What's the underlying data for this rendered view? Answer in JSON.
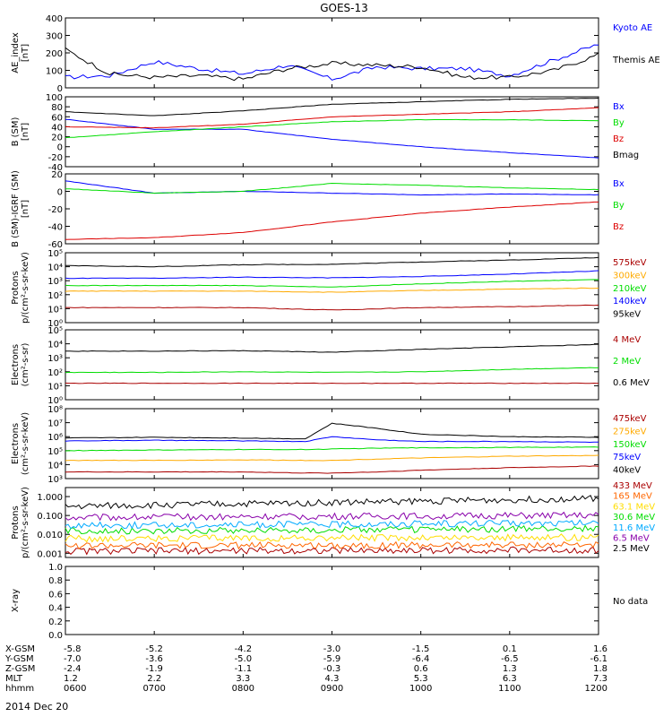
{
  "title": "GOES-13",
  "date_label": "2014 Dec 20",
  "ephemeris": {
    "labels": [
      "X-GSM",
      "Y-GSM",
      "Z-GSM",
      "MLT",
      "hhmm"
    ],
    "columns": [
      {
        "x": "-5.8",
        "y": "-7.0",
        "z": "-2.4",
        "mlt": "1.2",
        "hhmm": "0600"
      },
      {
        "x": "-5.2",
        "y": "-3.6",
        "z": "-1.9",
        "mlt": "2.2",
        "hhmm": "0700"
      },
      {
        "x": "-4.2",
        "y": "-5.0",
        "z": "-1.1",
        "mlt": "3.3",
        "hhmm": "0800"
      },
      {
        "x": "-3.0",
        "y": "-5.9",
        "z": "-0.3",
        "mlt": "4.3",
        "hhmm": "0900"
      },
      {
        "x": "-1.5",
        "y": "-6.4",
        "z": "0.6",
        "mlt": "5.3",
        "hhmm": "1000"
      },
      {
        "x": "0.1",
        "y": "-6.5",
        "z": "1.3",
        "mlt": "6.3",
        "hhmm": "1100"
      },
      {
        "x": "1.6",
        "y": "-6.1",
        "z": "1.8",
        "mlt": "7.3",
        "hhmm": "1200"
      }
    ]
  },
  "chart_data": [
    {
      "type": "line",
      "ylabel": "AE_index\n[nT]",
      "ylim": [
        0,
        400
      ],
      "log": false,
      "yticks": [
        "400",
        "300",
        "200",
        "100",
        "0"
      ],
      "ytick_vals": [
        400,
        300,
        200,
        100,
        0
      ],
      "x": [
        0,
        0.5,
        1,
        1.5,
        2,
        2.5,
        3,
        3.5,
        4,
        4.5,
        5,
        5.5,
        6
      ],
      "series": [
        {
          "name": "Kyoto AE",
          "color": "#0000ff",
          "values": [
            60,
            70,
            150,
            110,
            80,
            130,
            50,
            120,
            110,
            110,
            70,
            160,
            250
          ]
        },
        {
          "name": "Themis AE",
          "color": "#000000",
          "values": [
            220,
            80,
            60,
            70,
            50,
            110,
            140,
            130,
            120,
            60,
            60,
            100,
            190
          ]
        }
      ]
    },
    {
      "type": "line",
      "ylabel": "B (SM)\n[nT]",
      "ylim": [
        -40,
        100
      ],
      "log": false,
      "yticks": [
        "100",
        "80",
        "60",
        "40",
        "20",
        "0",
        "-20",
        "-40"
      ],
      "ytick_vals": [
        100,
        80,
        60,
        40,
        20,
        0,
        -20,
        -40
      ],
      "x": [
        0,
        1,
        2,
        3,
        4,
        5,
        6
      ],
      "series": [
        {
          "name": "Bx",
          "color": "#0000ff",
          "values": [
            55,
            35,
            35,
            15,
            0,
            -12,
            -22
          ]
        },
        {
          "name": "By",
          "color": "#00dd00",
          "values": [
            18,
            30,
            40,
            50,
            54,
            54,
            52
          ]
        },
        {
          "name": "Bz",
          "color": "#dd0000",
          "values": [
            40,
            38,
            45,
            60,
            65,
            70,
            78
          ]
        },
        {
          "name": "Bmag",
          "color": "#000000",
          "values": [
            70,
            62,
            72,
            85,
            90,
            95,
            97
          ]
        }
      ]
    },
    {
      "type": "line",
      "ylabel": "B (SM)-IGRF (SM)\n[nT]",
      "ylim": [
        -60,
        20
      ],
      "log": false,
      "yticks": [
        "20",
        "0",
        "-20",
        "-40",
        "-60"
      ],
      "ytick_vals": [
        20,
        0,
        -20,
        -40,
        -60
      ],
      "x": [
        0,
        1,
        2,
        3,
        4,
        5,
        6
      ],
      "series": [
        {
          "name": "Bx",
          "color": "#0000ff",
          "values": [
            12,
            -2,
            0,
            -2,
            -4,
            -3,
            -4
          ]
        },
        {
          "name": "By",
          "color": "#00dd00",
          "values": [
            3,
            -2,
            0,
            9,
            7,
            4,
            2
          ]
        },
        {
          "name": "Bz",
          "color": "#dd0000",
          "values": [
            -55,
            -53,
            -47,
            -35,
            -25,
            -18,
            -12
          ]
        }
      ]
    },
    {
      "type": "line",
      "ylabel": "Protons\np/(cm²-s-sr-keV)",
      "ylim": [
        1,
        100000
      ],
      "log": true,
      "yticks": [
        "10⁵",
        "10⁴",
        "10³",
        "10²",
        "10¹",
        "10⁰"
      ],
      "ytick_vals": [
        100000,
        10000,
        1000,
        100,
        10,
        1
      ],
      "x": [
        0,
        1,
        2,
        3,
        4,
        5,
        6
      ],
      "series": [
        {
          "name": "575keV",
          "color": "#aa0000",
          "values": [
            12,
            12,
            12,
            8,
            12,
            14,
            18
          ]
        },
        {
          "name": "300keV",
          "color": "#ffaa00",
          "values": [
            180,
            180,
            180,
            150,
            200,
            250,
            300
          ]
        },
        {
          "name": "210keV",
          "color": "#00dd00",
          "values": [
            450,
            450,
            450,
            350,
            600,
            900,
            1200
          ]
        },
        {
          "name": "140keV",
          "color": "#0000ff",
          "values": [
            1500,
            1500,
            1800,
            1600,
            2000,
            3000,
            5000
          ]
        },
        {
          "name": "95keV",
          "color": "#000000",
          "values": [
            12000,
            10000,
            14000,
            15000,
            22000,
            30000,
            45000
          ]
        }
      ]
    },
    {
      "type": "line",
      "ylabel": "Electrons\n(cm²-s-sr)",
      "ylim": [
        1,
        100000
      ],
      "log": true,
      "yticks": [
        "10⁵",
        "10⁴",
        "10³",
        "10²",
        "10¹",
        "10⁰"
      ],
      "ytick_vals": [
        100000,
        10000,
        1000,
        100,
        10,
        1
      ],
      "x": [
        0,
        1,
        2,
        3,
        4,
        5,
        6
      ],
      "series": [
        {
          "name": "4 MeV",
          "color": "#aa0000",
          "values": [
            15,
            15,
            15,
            15,
            15,
            15,
            15
          ]
        },
        {
          "name": "2 MeV",
          "color": "#00dd00",
          "values": [
            90,
            90,
            100,
            90,
            100,
            150,
            200
          ]
        },
        {
          "name": "0.6 MeV",
          "color": "#000000",
          "values": [
            3000,
            3000,
            3200,
            2500,
            4000,
            6000,
            9000
          ]
        }
      ]
    },
    {
      "type": "line",
      "ylabel": "Electrons\n(cm²-s-sr-keV)",
      "ylim": [
        1000,
        100000000
      ],
      "log": true,
      "yticks": [
        "10⁸",
        "10⁷",
        "10⁶",
        "10⁵",
        "10⁴",
        "10³"
      ],
      "ytick_vals": [
        100000000,
        10000000,
        1000000,
        100000,
        10000,
        1000
      ],
      "x": [
        0,
        1,
        2,
        2.7,
        3,
        3.5,
        4,
        5,
        6
      ],
      "series": [
        {
          "name": "475keV",
          "color": "#aa0000",
          "values": [
            3000,
            3000,
            3000,
            2500,
            2500,
            3000,
            4000,
            6000,
            8000
          ]
        },
        {
          "name": "275keV",
          "color": "#ffaa00",
          "values": [
            20000,
            20000,
            22000,
            20000,
            20000,
            25000,
            30000,
            40000,
            45000
          ]
        },
        {
          "name": "150keV",
          "color": "#00dd00",
          "values": [
            100000,
            110000,
            120000,
            120000,
            130000,
            150000,
            160000,
            170000,
            180000
          ]
        },
        {
          "name": "75keV",
          "color": "#0000ff",
          "values": [
            500000,
            550000,
            500000,
            450000,
            1000000,
            600000,
            450000,
            450000,
            400000
          ]
        },
        {
          "name": "40keV",
          "color": "#000000",
          "values": [
            800000,
            900000,
            800000,
            700000,
            9000000,
            4000000,
            1500000,
            1000000,
            900000
          ]
        }
      ]
    },
    {
      "type": "line",
      "ylabel": "Protons\np/(cm²-s-sr-keV)",
      "ylim": [
        0.0006,
        3
      ],
      "log": true,
      "yticks": [
        "1.000",
        "0.100",
        "0.010",
        "0.001"
      ],
      "ytick_vals": [
        1,
        0.1,
        0.01,
        0.001
      ],
      "x": [
        0,
        6
      ],
      "series": [
        {
          "name": "433 MeV",
          "color": "#aa0000",
          "values": [
            0.0013,
            0.0015
          ]
        },
        {
          "name": "165 MeV",
          "color": "#ff6600",
          "values": [
            0.0025,
            0.0028
          ]
        },
        {
          "name": "63.1 MeV",
          "color": "#ffdd00",
          "values": [
            0.006,
            0.007
          ]
        },
        {
          "name": "30.6 MeV",
          "color": "#00dd00",
          "values": [
            0.015,
            0.02
          ]
        },
        {
          "name": "11.6 MeV",
          "color": "#00aaff",
          "values": [
            0.03,
            0.04
          ]
        },
        {
          "name": "6.5 MeV",
          "color": "#8800aa",
          "values": [
            0.08,
            0.1
          ]
        },
        {
          "name": "2.5 MeV",
          "color": "#000000",
          "values": [
            0.3,
            0.8
          ]
        }
      ]
    },
    {
      "type": "line",
      "ylabel": "X-ray",
      "ylim": [
        0,
        1
      ],
      "log": false,
      "yticks": [
        "1.0",
        "0.8",
        "0.6",
        "0.4",
        "0.2",
        "0.0"
      ],
      "ytick_vals": [
        1,
        0.8,
        0.6,
        0.4,
        0.2,
        0
      ],
      "x": [],
      "series": [],
      "note": "No data"
    }
  ]
}
